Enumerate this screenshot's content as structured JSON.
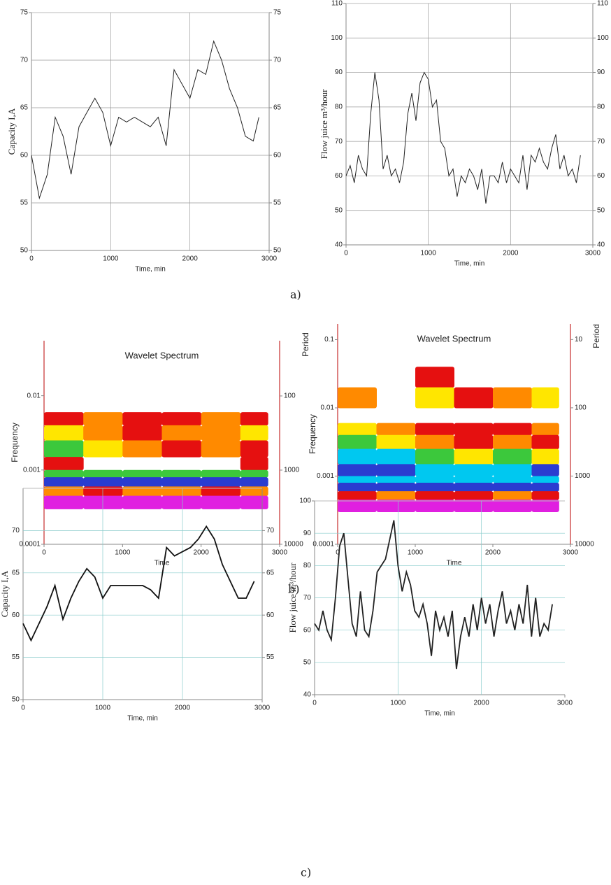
{
  "captions": [
    "a)",
    "b)",
    "c)"
  ],
  "chart_data": [
    {
      "type": "line",
      "ylabel": "Capacity  I,A",
      "xlabel": "Time, min",
      "color": "#222",
      "grid": true,
      "xlim": [
        0,
        3000
      ],
      "xticks": [
        0,
        1000,
        2000,
        3000
      ],
      "ylim": [
        50,
        75
      ],
      "yticks": [
        50,
        55,
        60,
        65,
        70,
        75
      ],
      "y2lim": [
        50,
        75
      ],
      "y2ticks": [
        50,
        55,
        60,
        65,
        70,
        75
      ],
      "x": [
        0,
        100,
        200,
        300,
        400,
        500,
        600,
        700,
        800,
        900,
        1000,
        1100,
        1200,
        1300,
        1400,
        1500,
        1600,
        1700,
        1800,
        1900,
        2000,
        2100,
        2200,
        2300,
        2400,
        2500,
        2600,
        2700,
        2800,
        2870
      ],
      "values": [
        60,
        55.5,
        58,
        64,
        62,
        58,
        63,
        64.5,
        66,
        64.5,
        61,
        64,
        63.5,
        64,
        63.5,
        63,
        64,
        61,
        69,
        67.5,
        66,
        69,
        68.5,
        72,
        70,
        67,
        65,
        62,
        61.5,
        64
      ]
    },
    {
      "type": "line",
      "ylabel": "Flow juice m³/hour",
      "xlabel": "Time, min",
      "color": "#222",
      "grid": true,
      "xlim": [
        0,
        3000
      ],
      "xticks": [
        0,
        1000,
        2000,
        3000
      ],
      "ylim": [
        40,
        110
      ],
      "yticks": [
        40,
        50,
        60,
        70,
        80,
        90,
        100,
        110
      ],
      "y2lim": [
        40,
        110
      ],
      "y2ticks": [
        40,
        50,
        60,
        70,
        80,
        90,
        100,
        110
      ],
      "x": [
        0,
        50,
        100,
        150,
        200,
        250,
        300,
        350,
        400,
        450,
        500,
        550,
        600,
        650,
        700,
        750,
        800,
        850,
        900,
        950,
        1000,
        1050,
        1100,
        1150,
        1200,
        1250,
        1300,
        1350,
        1400,
        1450,
        1500,
        1550,
        1600,
        1650,
        1700,
        1750,
        1800,
        1850,
        1900,
        1950,
        2000,
        2050,
        2100,
        2150,
        2200,
        2250,
        2300,
        2350,
        2400,
        2450,
        2500,
        2550,
        2600,
        2650,
        2700,
        2750,
        2800,
        2850
      ],
      "values": [
        60,
        63,
        58,
        66,
        62,
        60,
        78,
        90,
        82,
        62,
        66,
        60,
        62,
        58,
        64,
        78,
        84,
        76,
        87,
        90,
        88,
        80,
        82,
        70,
        68,
        60,
        62,
        54,
        60,
        58,
        62,
        60,
        56,
        62,
        52,
        60,
        60,
        58,
        64,
        58,
        62,
        60,
        58,
        66,
        56,
        66,
        64,
        68,
        64,
        62,
        68,
        72,
        62,
        66,
        60,
        62,
        58,
        66
      ]
    },
    {
      "type": "heatmap",
      "title": "Wavelet Spectrum",
      "ylabel": "Frequency",
      "y2label": "Period",
      "xlabel": "Time",
      "log": true,
      "xlim": [
        0,
        3000
      ],
      "xticks": [
        0,
        1000,
        2000,
        3000
      ],
      "ylim": [
        0.0001,
        0.055
      ],
      "yticks": [
        0.0001,
        0.001,
        0.01
      ],
      "y2lim": [
        10000,
        18
      ],
      "y2ticks": [
        10000,
        1000,
        100
      ],
      "colormap": [
        "#ffffff",
        "#e51010",
        "#ff8a00",
        "#ffe600",
        "#3cc83c",
        "#00c8f0",
        "#2a3cd0",
        "#e020e0"
      ],
      "x_edges": [
        0,
        500,
        1000,
        1500,
        2000,
        2500,
        2850
      ],
      "y_edges": [
        0.006,
        0.004,
        0.0025,
        0.0015,
        0.001,
        0.0008,
        0.0006,
        0.00045,
        0.0003
      ],
      "z": [
        [
          1,
          2,
          1,
          1,
          2,
          1
        ],
        [
          3,
          2,
          1,
          2,
          2,
          3
        ],
        [
          4,
          3,
          2,
          1,
          2,
          1
        ],
        [
          1,
          0,
          0,
          0,
          0,
          1
        ],
        [
          4,
          4,
          4,
          4,
          4,
          4
        ],
        [
          6,
          6,
          6,
          6,
          6,
          6
        ],
        [
          2,
          1,
          2,
          2,
          1,
          2
        ],
        [
          7,
          7,
          7,
          7,
          7,
          7
        ]
      ]
    },
    {
      "type": "heatmap",
      "title": "Wavelet Spectrum",
      "ylabel": "Frequency",
      "y2label": "Period",
      "xlabel": "Time",
      "log": true,
      "xlim": [
        0,
        3000
      ],
      "xticks": [
        0,
        1000,
        2000,
        3000
      ],
      "ylim": [
        0.0001,
        0.17
      ],
      "yticks": [
        0.0001,
        0.001,
        0.01,
        0.1
      ],
      "y2lim": [
        10000,
        5.9
      ],
      "y2ticks": [
        10000,
        1000,
        100,
        10
      ],
      "colormap": [
        "#ffffff",
        "#e51010",
        "#ff8a00",
        "#ffe600",
        "#3cc83c",
        "#00c8f0",
        "#2a3cd0",
        "#e020e0"
      ],
      "x_edges": [
        0,
        500,
        1000,
        1500,
        2000,
        2500,
        2850
      ],
      "y_edges": [
        0.04,
        0.02,
        0.01,
        0.006,
        0.004,
        0.0025,
        0.0015,
        0.001,
        0.0008,
        0.0006,
        0.00045,
        0.0003
      ],
      "z": [
        [
          0,
          0,
          1,
          0,
          0,
          0
        ],
        [
          2,
          0,
          3,
          1,
          2,
          3
        ],
        [
          0,
          0,
          0,
          0,
          0,
          0
        ],
        [
          3,
          2,
          1,
          1,
          1,
          2
        ],
        [
          4,
          3,
          2,
          1,
          2,
          1
        ],
        [
          5,
          5,
          4,
          3,
          4,
          3
        ],
        [
          6,
          6,
          5,
          5,
          5,
          6
        ],
        [
          5,
          5,
          5,
          5,
          5,
          5
        ],
        [
          6,
          6,
          6,
          6,
          6,
          6
        ],
        [
          1,
          2,
          1,
          1,
          2,
          1
        ],
        [
          7,
          7,
          7,
          7,
          7,
          7
        ]
      ]
    },
    {
      "type": "line",
      "ylabel": "Capacity  I,A",
      "xlabel": "Time, min",
      "color": "#111",
      "grid": true,
      "xlim": [
        0,
        3000
      ],
      "xticks": [
        0,
        1000,
        2000,
        3000
      ],
      "ylim": [
        50,
        75
      ],
      "yticks": [
        50,
        55,
        60,
        65,
        70
      ],
      "y2lim": [
        50,
        75
      ],
      "y2ticks": [
        55,
        60,
        65,
        70
      ],
      "x": [
        0,
        100,
        200,
        300,
        400,
        500,
        600,
        700,
        800,
        900,
        1000,
        1100,
        1200,
        1300,
        1400,
        1500,
        1600,
        1700,
        1800,
        1900,
        2000,
        2100,
        2200,
        2300,
        2400,
        2500,
        2600,
        2700,
        2800,
        2900
      ],
      "values": [
        59,
        57,
        59,
        61,
        63.5,
        59.5,
        62,
        64,
        65.5,
        64.5,
        62,
        63.5,
        63.5,
        63.5,
        63.5,
        63.5,
        63,
        62,
        68,
        67,
        67.5,
        68,
        69,
        70.5,
        69,
        66,
        64,
        62,
        62,
        64
      ]
    },
    {
      "type": "line",
      "ylabel": "Flow juice m³/hour",
      "xlabel": "Time, min",
      "color": "#222",
      "grid": true,
      "xlim": [
        0,
        3000
      ],
      "xticks": [
        0,
        1000,
        2000,
        3000
      ],
      "ylim": [
        40,
        100
      ],
      "yticks": [
        40,
        50,
        60,
        70,
        80,
        90,
        100
      ],
      "x": [
        0,
        50,
        100,
        150,
        200,
        250,
        300,
        350,
        400,
        450,
        500,
        550,
        600,
        650,
        700,
        750,
        800,
        850,
        900,
        950,
        1000,
        1050,
        1100,
        1150,
        1200,
        1250,
        1300,
        1350,
        1400,
        1450,
        1500,
        1550,
        1600,
        1650,
        1700,
        1750,
        1800,
        1850,
        1900,
        1950,
        2000,
        2050,
        2100,
        2150,
        2200,
        2250,
        2300,
        2350,
        2400,
        2450,
        2500,
        2550,
        2600,
        2650,
        2700,
        2750,
        2800,
        2850
      ],
      "values": [
        62,
        60,
        66,
        60,
        57,
        70,
        86,
        90,
        76,
        62,
        58,
        72,
        60,
        58,
        66,
        78,
        80,
        82,
        88,
        94,
        80,
        72,
        78,
        74,
        66,
        64,
        68,
        62,
        52,
        66,
        60,
        64,
        58,
        66,
        48,
        58,
        64,
        58,
        68,
        60,
        70,
        62,
        68,
        58,
        66,
        72,
        62,
        66,
        60,
        68,
        62,
        74,
        58,
        70,
        58,
        62,
        60,
        68
      ]
    }
  ]
}
